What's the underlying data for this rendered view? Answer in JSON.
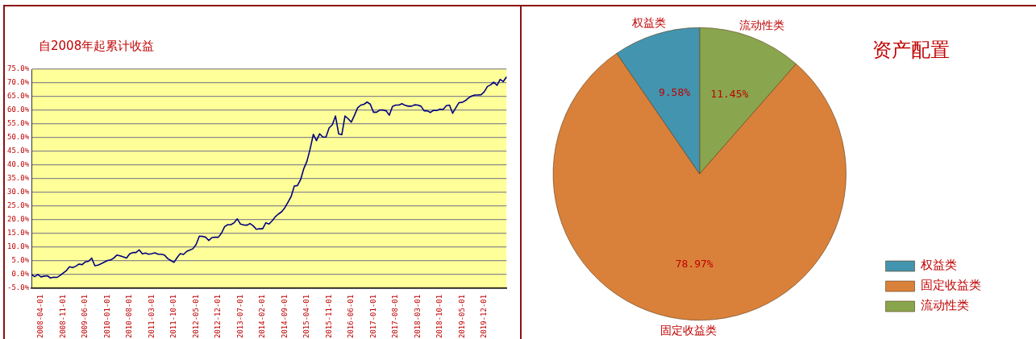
{
  "chart_data": [
    {
      "type": "line",
      "title": "自2008年起累计收益",
      "categories": [
        null,
        null,
        null,
        "2008-04-01",
        null,
        null,
        null,
        null,
        null,
        null,
        "2008-11-01",
        null,
        null,
        null,
        null,
        null,
        null,
        "2009-06-01",
        null,
        null,
        null,
        null,
        null,
        null,
        "2010-01-01",
        null,
        null,
        null,
        null,
        null,
        null,
        "2010-08-01",
        null,
        null,
        null,
        null,
        null,
        null,
        "2011-03-01",
        null,
        null,
        null,
        null,
        null,
        null,
        "2011-10-01",
        null,
        null,
        null,
        null,
        null,
        null,
        "2012-05-01",
        null,
        null,
        null,
        null,
        null,
        null,
        "2012-12-01",
        null,
        null,
        null,
        null,
        null,
        null,
        "2013-07-01",
        null,
        null,
        null,
        null,
        null,
        null,
        "2014-02-01",
        null,
        null,
        null,
        null,
        null,
        null,
        "2014-09-01",
        null,
        null,
        null,
        null,
        null,
        null,
        "2015-04-01",
        null,
        null,
        null,
        null,
        null,
        null,
        "2015-11-01",
        null,
        null,
        null,
        null,
        null,
        null,
        "2016-06-01",
        null,
        null,
        null,
        null,
        null,
        null,
        "2017-01-01",
        null,
        null,
        null,
        null,
        null,
        null,
        "2017-08-01",
        null,
        null,
        null,
        null,
        null,
        null,
        "2018-03-01",
        null,
        null,
        null,
        null,
        null,
        null,
        "2018-10-01",
        null,
        null,
        null,
        null,
        null,
        null,
        "2019-05-01",
        null,
        null,
        null,
        null,
        null,
        null,
        "2019-12-01",
        null,
        null,
        null,
        null,
        null,
        null,
        null
      ],
      "series": [
        {
          "color": "#000080",
          "values": [
            0,
            -0.8,
            0,
            -0.9,
            -0.6,
            -0.5,
            -1.3,
            -1,
            -1.1,
            -0.4,
            0.5,
            1.4,
            2.8,
            2.5,
            3,
            3.8,
            3.6,
            4.6,
            4.8,
            6,
            3.2,
            3.4,
            3.9,
            4.5,
            5.1,
            5.3,
            6,
            7.1,
            6.8,
            6.4,
            6,
            7.5,
            8,
            8,
            9,
            7.5,
            7.8,
            7.4,
            7.6,
            7.9,
            7.4,
            7.4,
            7.1,
            5.8,
            5.1,
            4.4,
            6.2,
            7.6,
            7.3,
            8.4,
            8.9,
            9.4,
            11,
            14,
            13.9,
            13.6,
            12.4,
            13.5,
            13.6,
            13.6,
            15.1,
            17.5,
            18.2,
            18.2,
            18.9,
            20.3,
            18.4,
            18.1,
            18,
            18.6,
            17.8,
            16.5,
            16.7,
            16.7,
            18.9,
            18.4,
            19.6,
            21.1,
            22.1,
            22.9,
            24.4,
            26.4,
            28.5,
            32.3,
            32.5,
            34.7,
            38.7,
            41.4,
            45.9,
            51.2,
            48.9,
            51.4,
            50.2,
            50.2,
            53.6,
            54.7,
            57.9,
            51.4,
            51.1,
            57.9,
            56.9,
            55.7,
            58.2,
            60.9,
            61.9,
            62.2,
            63,
            62.2,
            59.3,
            59.3,
            60.1,
            60.1,
            59.8,
            58.2,
            61.4,
            61.9,
            61.9,
            62.4,
            61.8,
            61.5,
            61.5,
            62,
            61.9,
            61.5,
            59.8,
            59.8,
            59.2,
            60,
            59.9,
            60.4,
            60.3,
            61.7,
            61.9,
            58.9,
            60.9,
            62.8,
            62.9,
            63.5,
            64.5,
            65.2,
            65.6,
            65.6,
            65.7,
            66.8,
            68.7,
            69.3,
            70.3,
            69.1,
            71.3,
            70.5,
            72.2
          ]
        }
      ],
      "ylim": [
        -5,
        75
      ],
      "yticks": [
        {
          "value": -5,
          "label": "-5.0%"
        },
        {
          "value": 0,
          "label": "0.0%"
        },
        {
          "value": 5,
          "label": "5.0%"
        },
        {
          "value": 10,
          "label": "10.0%"
        },
        {
          "value": 15,
          "label": "15.0%"
        },
        {
          "value": 20,
          "label": "20.0%"
        },
        {
          "value": 25,
          "label": "25.0%"
        },
        {
          "value": 30,
          "label": "30.0%"
        },
        {
          "value": 35,
          "label": "35.0%"
        },
        {
          "value": 40,
          "label": "40.0%"
        },
        {
          "value": 45,
          "label": "45.0%"
        },
        {
          "value": 50,
          "label": "50.0%"
        },
        {
          "value": 55,
          "label": "55.0%"
        },
        {
          "value": 60,
          "label": "60.0%"
        },
        {
          "value": 65,
          "label": "65.0%"
        },
        {
          "value": 70,
          "label": "70.0%"
        },
        {
          "value": 75,
          "label": "75.0%"
        }
      ],
      "grid": "y",
      "legend": false,
      "marker": "none"
    },
    {
      "type": "pie",
      "title": "资产配置",
      "categories": [
        "权益类",
        "固定收益类",
        "流动性类"
      ],
      "values": [
        9.58,
        78.97,
        11.45
      ],
      "colors": [
        "#4394ae",
        "#d9813a",
        "#89a54e"
      ],
      "value_labels": [
        "9.58%",
        "78.97%",
        "11.45%"
      ],
      "legend": "bottom right"
    }
  ]
}
